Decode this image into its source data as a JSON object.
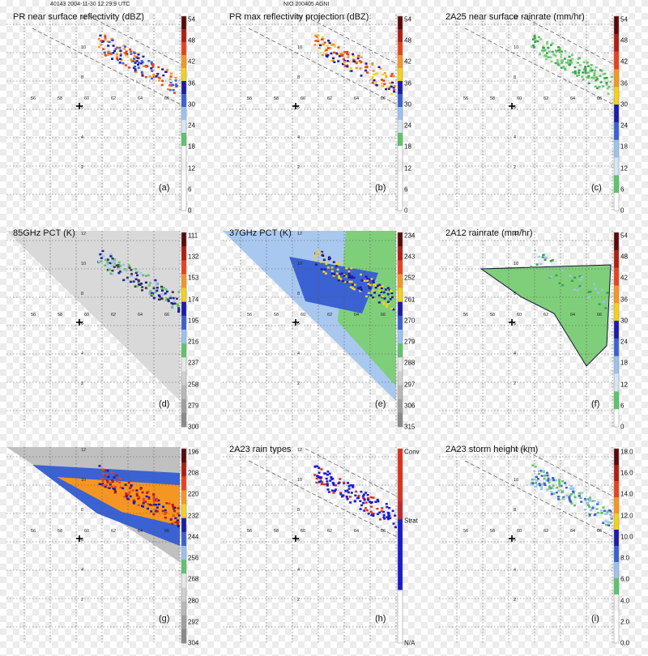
{
  "header": {
    "left": "40143 2004-11-30 12:29:9 UTC",
    "center": "NIO 200405 AGNI"
  },
  "chart_data": [
    {
      "type": "heatmap",
      "title": "PR near surface reflectivity (dBZ)",
      "panel_label": "(a)",
      "colorbar": {
        "ticks": [
          "54",
          "48",
          "42",
          "36",
          "30",
          "24",
          "18",
          "12",
          "6",
          "0"
        ],
        "colors": [
          "#5a0a0a",
          "#b01e12",
          "#e8421c",
          "#f59622",
          "#f2d21c",
          "#1c1ca8",
          "#3a62d2",
          "#9cc2ee",
          "#d8e6f4",
          "#5ec46a",
          "#fafafa",
          "#f2f2f2",
          "#ffffff",
          "#ffffff",
          "#ffffff"
        ]
      },
      "swath": true,
      "rain": "pr"
    },
    {
      "type": "heatmap",
      "title": "PR max reflectivity projection (dBZ)",
      "panel_label": "(b)",
      "colorbar": {
        "ticks": [
          "54",
          "48",
          "42",
          "36",
          "30",
          "24",
          "18",
          "12",
          "6",
          "0"
        ],
        "colors": [
          "#5a0a0a",
          "#b01e12",
          "#e8421c",
          "#f59622",
          "#f2d21c",
          "#1c1ca8",
          "#3a62d2",
          "#9cc2ee",
          "#d8e6f4",
          "#5ec46a",
          "#fafafa",
          "#f2f2f2",
          "#ffffff",
          "#ffffff",
          "#ffffff"
        ]
      },
      "swath": true,
      "rain": "prmax"
    },
    {
      "type": "heatmap",
      "title": "2A25 near surface rainrate (mm/hr)",
      "panel_label": "(c)",
      "colorbar": {
        "ticks": [
          "54",
          "48",
          "42",
          "36",
          "30",
          "24",
          "18",
          "12",
          "6",
          "0"
        ],
        "colors": [
          "#5a0a0a",
          "#b01e12",
          "#e8421c",
          "#f59622",
          "#f2d21c",
          "#1c1ca8",
          "#3a62d2",
          "#9cc2ee",
          "#d8e6f4",
          "#5ec46a",
          "#ffffff"
        ]
      },
      "swath": true,
      "rain": "green"
    },
    {
      "type": "heatmap",
      "title": "85GHz PCT (K)",
      "panel_label": "(d)",
      "colorbar": {
        "ticks": [
          "111",
          "132",
          "153",
          "174",
          "195",
          "216",
          "237",
          "258",
          "279",
          "300"
        ],
        "colors": [
          "#5a0a0a",
          "#b01e12",
          "#e8421c",
          "#f59622",
          "#f2d21c",
          "#1c1ca8",
          "#3a62d2",
          "#9cc2ee",
          "#5ec46a",
          "#e8e8e8",
          "#d0d0d0",
          "#b8b8b8",
          "#a0a0a0",
          "#8a8a8a"
        ]
      },
      "swath": false,
      "rain": "pct85"
    },
    {
      "type": "heatmap",
      "title": "37GHz PCT (K)",
      "panel_label": "(e)",
      "colorbar": {
        "ticks": [
          "234",
          "243",
          "252",
          "261",
          "270",
          "279",
          "288",
          "297",
          "306",
          "315"
        ],
        "colors": [
          "#5a0a0a",
          "#b01e12",
          "#e8421c",
          "#f59622",
          "#f2d21c",
          "#1c1ca8",
          "#3a62d2",
          "#9cc2ee",
          "#5ec46a",
          "#e8e8e8",
          "#d0d0d0",
          "#b8b8b8",
          "#a0a0a0",
          "#8a8a8a"
        ]
      },
      "swath": false,
      "rain": "pct37"
    },
    {
      "type": "heatmap",
      "title": "2A12 rainrate (mm/hr)",
      "panel_label": "(f)",
      "colorbar": {
        "ticks": [
          "54",
          "48",
          "42",
          "36",
          "30",
          "24",
          "18",
          "12",
          "6",
          "0"
        ],
        "colors": [
          "#5a0a0a",
          "#b01e12",
          "#e8421c",
          "#f59622",
          "#f2d21c",
          "#1c1ca8",
          "#3a62d2",
          "#9cc2ee",
          "#d8e6f4",
          "#5ec46a",
          "#ffffff"
        ]
      },
      "swath": false,
      "rain": "tmi"
    },
    {
      "type": "heatmap",
      "title": "",
      "panel_label": "(g)",
      "colorbar": {
        "ticks": [
          "196",
          "208",
          "220",
          "232",
          "244",
          "256",
          "268",
          "280",
          "292",
          "304"
        ],
        "colors": [
          "#5a0a0a",
          "#b01e12",
          "#e8421c",
          "#f59622",
          "#f2d21c",
          "#1c1ca8",
          "#3a62d2",
          "#9cc2ee",
          "#5ec46a",
          "#e8e8e8",
          "#d0d0d0",
          "#b8b8b8",
          "#a0a0a0",
          "#8a8a8a"
        ]
      },
      "swath": false,
      "rain": "vis"
    },
    {
      "type": "heatmap",
      "title": "2A23 rain types",
      "panel_label": "(h)",
      "colorbar": {
        "ticks": [
          "Conv",
          "Strat",
          "N/A"
        ],
        "colors": [
          "#e03018",
          "#e03018",
          "#d83420",
          "#c02830",
          "#1a1ad0",
          "#1a1ad0",
          "#1a1ad0",
          "#1a1ad0",
          "#ffffff",
          "#ffffff",
          "#ffffff"
        ]
      },
      "swath": true,
      "rain": "types"
    },
    {
      "type": "heatmap",
      "title": "2A23 storm height (km)",
      "panel_label": "(i)",
      "colorbar": {
        "ticks": [
          "18.0",
          "16.0",
          "14.0",
          "12.0",
          "10.0",
          "8.0",
          "6.0",
          "4.0",
          "2.0",
          "0.0"
        ],
        "colors": [
          "#5a0a0a",
          "#b01e12",
          "#e8421c",
          "#f59622",
          "#f2d21c",
          "#1c1ca8",
          "#3a62d2",
          "#9cc2ee",
          "#5ec46a",
          "#f2f2f2",
          "#ffffff",
          "#ffffff"
        ]
      },
      "swath": true,
      "rain": "height"
    }
  ],
  "map_labels": {
    "lon": [
      "56",
      "58",
      "60",
      "62",
      "64",
      "66"
    ],
    "lat": [
      "12",
      "10",
      "8",
      "6",
      "4",
      "2"
    ]
  }
}
